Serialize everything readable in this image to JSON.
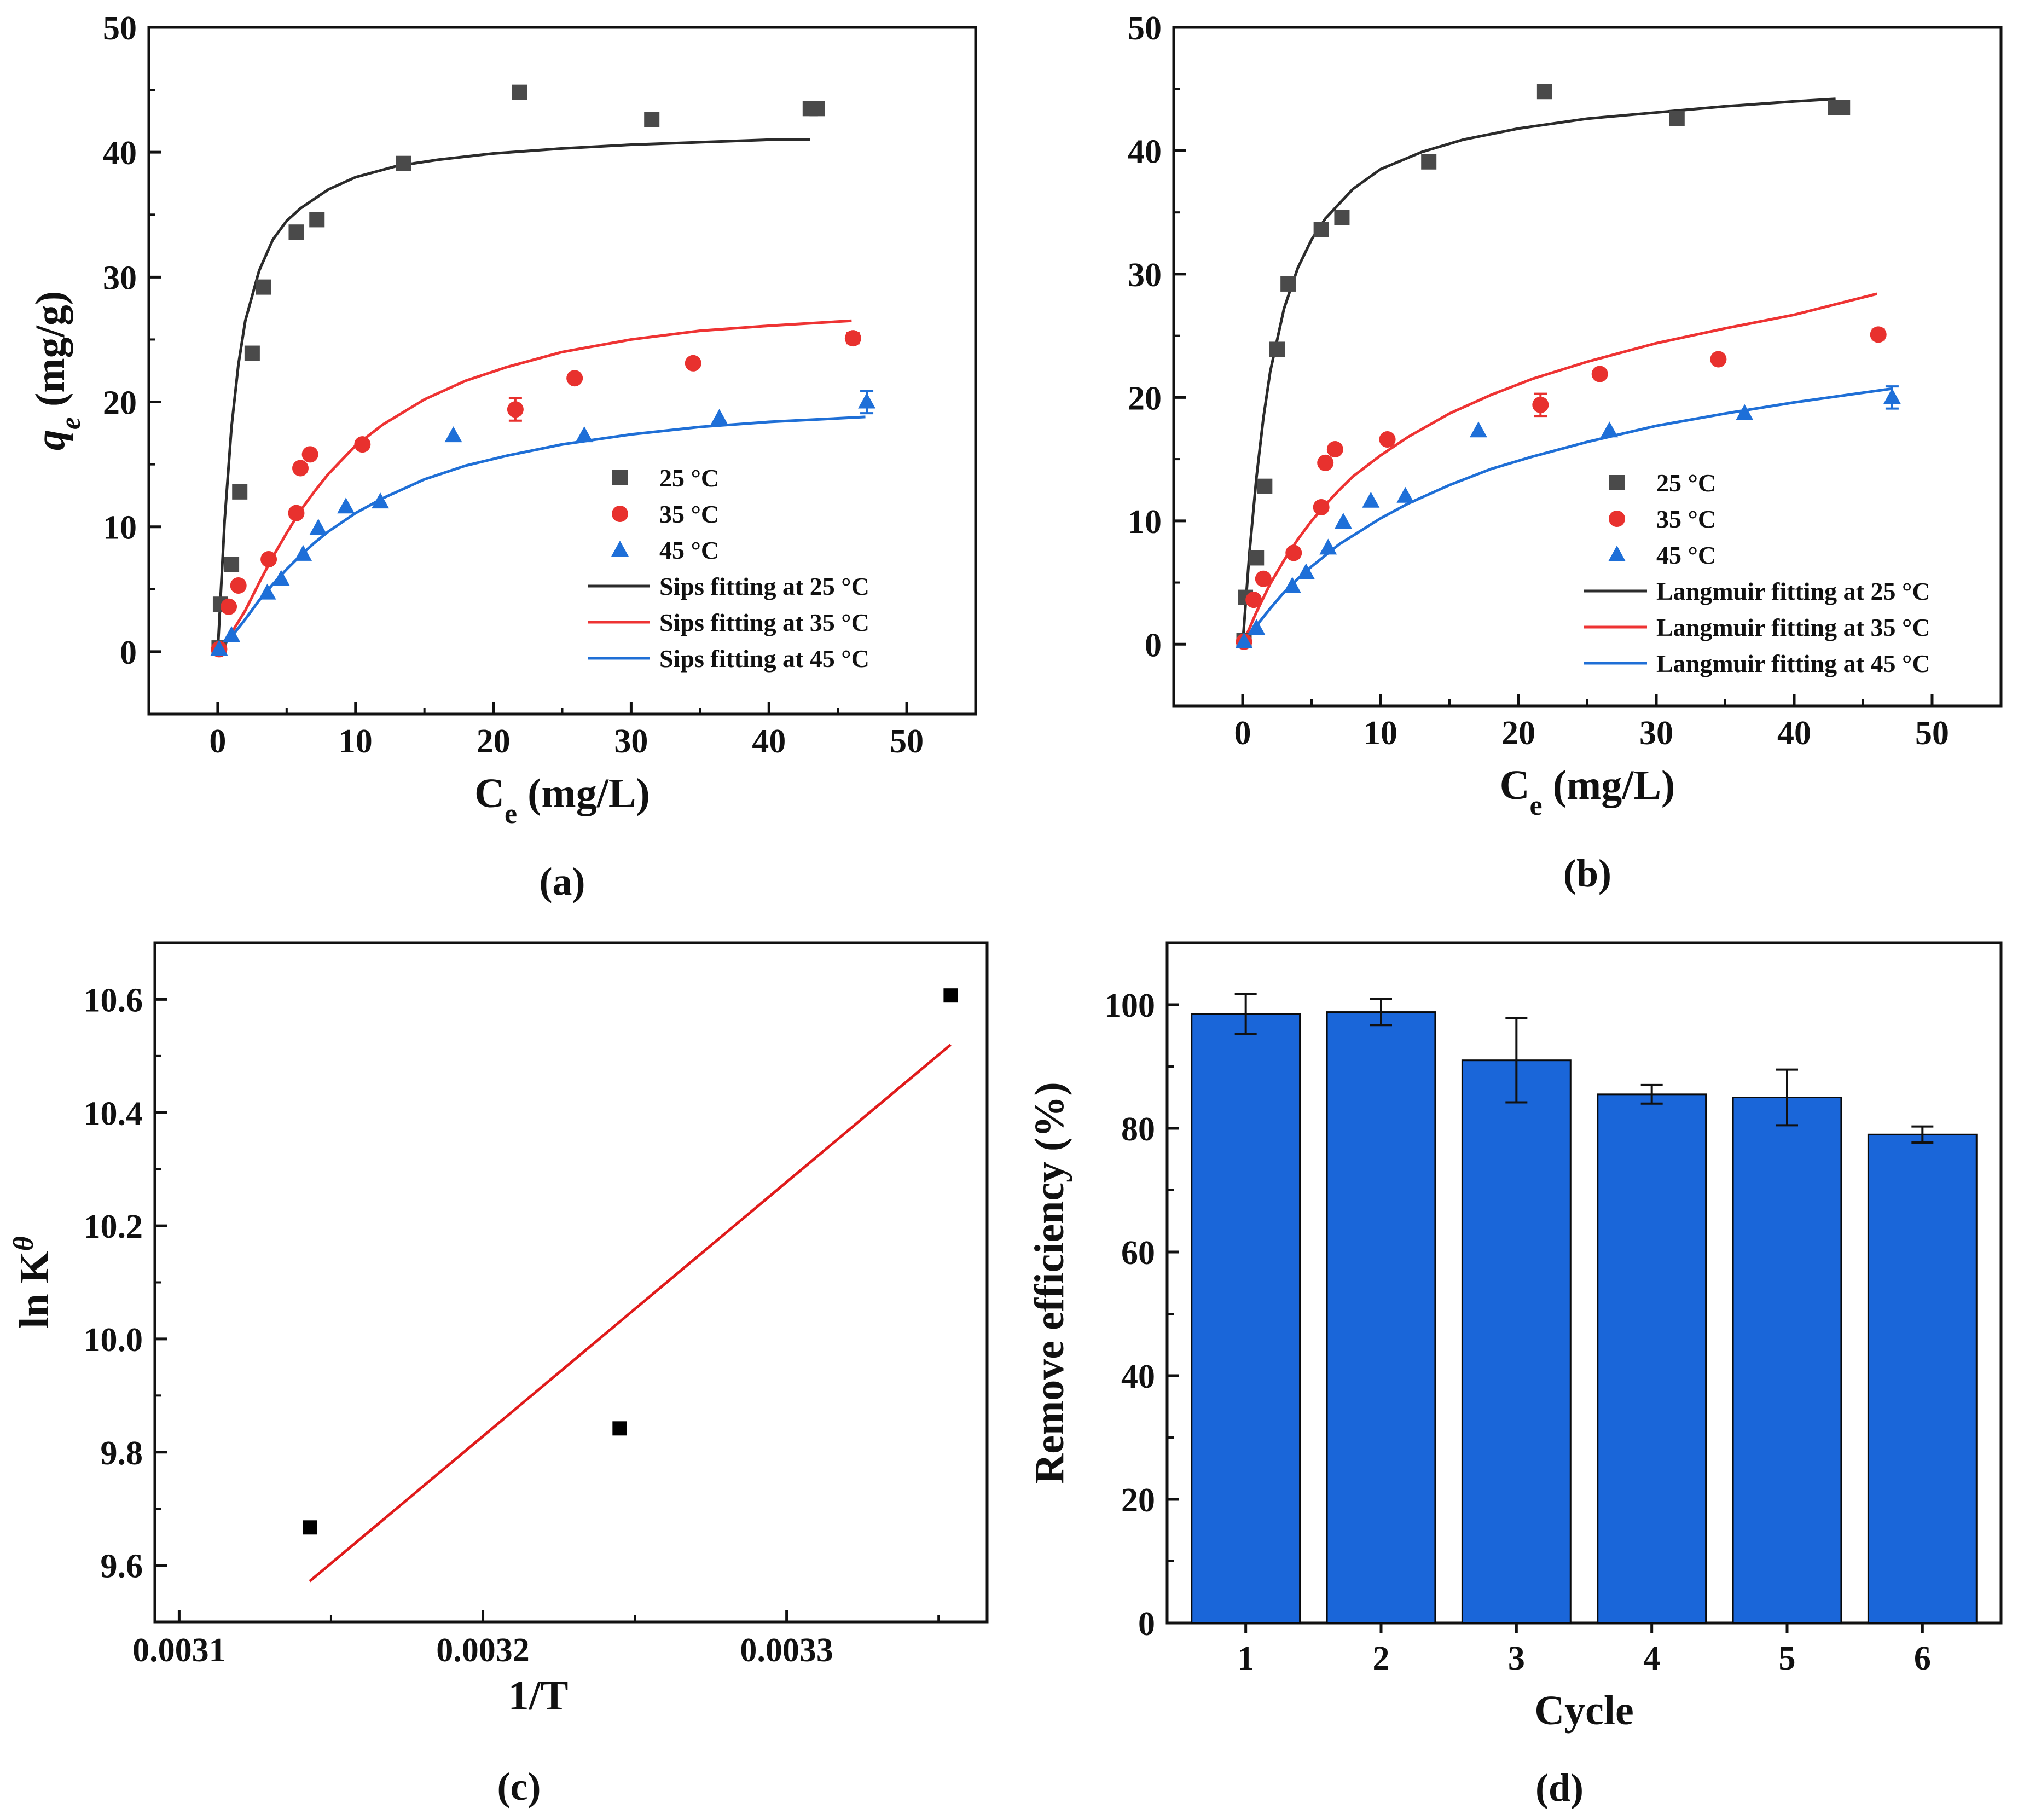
{
  "colors": {
    "c25": "#4a4a4a",
    "c35": "#e8312e",
    "c45": "#1e6fd8",
    "fit25": "#2b2b2b",
    "fit35": "#ee3333",
    "fit45": "#1f6fd6",
    "bar_fill": "#1a66d9",
    "axis": "#111111"
  },
  "chart_data": [
    {
      "type": "scatter",
      "panel_label": "(a)",
      "xlabel": "C",
      "xlabel_sub": "e",
      "xlabel_unit": " (mg/L)",
      "ylabel": "q",
      "ylabel_sub": "e",
      "ylabel_unit": " (mg/g)",
      "xlim": [
        -5,
        55
      ],
      "ylim": [
        -5,
        50
      ],
      "xticks": [
        0,
        10,
        20,
        30,
        40,
        50
      ],
      "yticks": [
        0,
        10,
        20,
        30,
        40,
        50
      ],
      "legend_position": "bottom-right",
      "series": [
        {
          "name": "25 °C",
          "marker": "square",
          "color_key": "c25",
          "x": [
            0.1,
            0.2,
            1.0,
            1.6,
            2.5,
            3.3,
            5.7,
            7.2,
            13.5,
            21.9,
            31.5,
            43.0,
            43.5
          ],
          "y": [
            0.3,
            3.8,
            7.0,
            12.8,
            23.9,
            29.2,
            33.6,
            34.6,
            39.1,
            44.8,
            42.6,
            43.5,
            43.5
          ]
        },
        {
          "name": "35 °C",
          "marker": "circle",
          "color_key": "c35",
          "x": [
            0.1,
            0.8,
            1.5,
            3.7,
            5.7,
            6.0,
            6.7,
            10.5,
            21.6,
            25.9,
            34.5,
            46.1
          ],
          "y": [
            0.2,
            3.6,
            5.3,
            7.4,
            11.1,
            14.7,
            15.8,
            16.6,
            19.4,
            21.9,
            23.1,
            25.1
          ],
          "err": [
            0,
            0,
            0,
            0,
            0,
            0,
            0,
            0,
            0.9,
            0,
            0,
            0.4
          ]
        },
        {
          "name": "45 °C",
          "marker": "triangle",
          "color_key": "c45",
          "x": [
            0.1,
            1.0,
            3.6,
            4.6,
            6.2,
            7.3,
            9.3,
            11.8,
            17.1,
            26.6,
            36.4,
            47.1
          ],
          "y": [
            0.2,
            1.3,
            4.7,
            5.8,
            7.8,
            9.9,
            11.6,
            12.0,
            17.3,
            17.3,
            18.7,
            20.0
          ],
          "err": [
            0,
            0,
            0,
            0,
            0,
            0,
            0,
            0,
            0,
            0,
            0,
            0.9
          ]
        },
        {
          "name": "Sips fitting at 25 °C",
          "style": "line",
          "color_key": "fit25",
          "x": [
            0.0,
            0.5,
            1,
            1.5,
            2,
            3,
            4,
            5,
            6,
            8,
            10,
            13,
            16,
            20,
            25,
            30,
            35,
            40,
            43
          ],
          "y": [
            0.0,
            10.5,
            18.0,
            23.0,
            26.5,
            30.5,
            33.0,
            34.5,
            35.5,
            37.0,
            38.0,
            38.9,
            39.4,
            39.9,
            40.3,
            40.6,
            40.8,
            41.0,
            41.0
          ]
        },
        {
          "name": "Sips fitting at 35 °C",
          "style": "line",
          "color_key": "fit35",
          "x": [
            0.0,
            1,
            2,
            3,
            4,
            5,
            6,
            7,
            8,
            10,
            12,
            15,
            18,
            21,
            25,
            30,
            35,
            40,
            46
          ],
          "y": [
            0.0,
            1.5,
            3.3,
            5.5,
            7.6,
            9.5,
            11.3,
            12.8,
            14.2,
            16.5,
            18.2,
            20.2,
            21.7,
            22.8,
            24.0,
            25.0,
            25.7,
            26.1,
            26.5
          ]
        },
        {
          "name": "Sips fitting at 45 °C",
          "style": "line",
          "color_key": "fit45",
          "x": [
            0.0,
            1,
            2,
            3,
            4,
            5,
            6,
            7,
            8,
            10,
            12,
            15,
            18,
            21,
            25,
            30,
            35,
            40,
            47
          ],
          "y": [
            0.0,
            1.2,
            2.6,
            4.1,
            5.4,
            6.6,
            7.7,
            8.7,
            9.6,
            11.1,
            12.3,
            13.8,
            14.9,
            15.7,
            16.6,
            17.4,
            18.0,
            18.4,
            18.8
          ]
        }
      ]
    },
    {
      "type": "scatter",
      "panel_label": "(b)",
      "xlabel": "C",
      "xlabel_sub": "e",
      "xlabel_unit": " (mg/L)",
      "xlim": [
        -5,
        55
      ],
      "ylim": [
        -5,
        50
      ],
      "xticks": [
        0,
        10,
        20,
        30,
        40,
        50
      ],
      "yticks": [
        0,
        10,
        20,
        30,
        40,
        50
      ],
      "legend_position": "bottom-right",
      "series": [
        {
          "name": "25 °C",
          "marker": "square",
          "color_key": "c25",
          "x": [
            0.1,
            0.2,
            1.0,
            1.6,
            2.5,
            3.3,
            5.7,
            7.2,
            13.5,
            21.9,
            31.5,
            43.0,
            43.5
          ],
          "y": [
            0.3,
            3.8,
            7.0,
            12.8,
            23.9,
            29.2,
            33.6,
            34.6,
            39.1,
            44.8,
            42.6,
            43.5,
            43.5
          ]
        },
        {
          "name": "35 °C",
          "marker": "circle",
          "color_key": "c35",
          "x": [
            0.1,
            0.8,
            1.5,
            3.7,
            5.7,
            6.0,
            6.7,
            10.5,
            21.6,
            25.9,
            34.5,
            46.1
          ],
          "y": [
            0.2,
            3.6,
            5.3,
            7.4,
            11.1,
            14.7,
            15.8,
            16.6,
            19.4,
            21.9,
            23.1,
            25.1
          ],
          "err": [
            0,
            0,
            0,
            0,
            0,
            0,
            0,
            0,
            0.9,
            0,
            0,
            0.4
          ]
        },
        {
          "name": "45 °C",
          "marker": "triangle",
          "color_key": "c45",
          "x": [
            0.1,
            1.0,
            3.6,
            4.6,
            6.2,
            7.3,
            9.3,
            11.8,
            17.1,
            26.6,
            36.4,
            47.1
          ],
          "y": [
            0.2,
            1.3,
            4.7,
            5.8,
            7.8,
            9.9,
            11.6,
            12.0,
            17.3,
            17.3,
            18.7,
            20.0
          ],
          "err": [
            0,
            0,
            0,
            0,
            0,
            0,
            0,
            0,
            0,
            0,
            0,
            0.9
          ]
        },
        {
          "name": "Langmuir fitting at 25 °C",
          "style": "line",
          "color_key": "fit25",
          "x": [
            0.0,
            0.5,
            1,
            1.5,
            2,
            3,
            4,
            5,
            6,
            8,
            10,
            13,
            16,
            20,
            25,
            30,
            35,
            40,
            43
          ],
          "y": [
            0.0,
            7.5,
            13.5,
            18.3,
            22.1,
            27.2,
            30.5,
            32.8,
            34.5,
            36.9,
            38.5,
            39.9,
            40.9,
            41.8,
            42.6,
            43.1,
            43.6,
            44.0,
            44.2
          ]
        },
        {
          "name": "Langmuir fitting at 35 °C",
          "style": "line",
          "color_key": "fit35",
          "x": [
            0.0,
            1,
            2,
            3,
            4,
            5,
            6,
            7,
            8,
            10,
            12,
            15,
            18,
            21,
            25,
            30,
            35,
            40,
            46
          ],
          "y": [
            0.0,
            2.6,
            4.9,
            6.8,
            8.5,
            10.0,
            11.3,
            12.5,
            13.6,
            15.3,
            16.8,
            18.7,
            20.2,
            21.5,
            22.9,
            24.4,
            25.6,
            26.7,
            28.4
          ]
        },
        {
          "name": "Langmuir fitting at 45 °C",
          "style": "line",
          "color_key": "fit45",
          "x": [
            0.0,
            1,
            2,
            3,
            4,
            5,
            6,
            7,
            8,
            10,
            12,
            15,
            18,
            21,
            25,
            30,
            35,
            40,
            47
          ],
          "y": [
            0.0,
            1.5,
            2.9,
            4.2,
            5.3,
            6.3,
            7.2,
            8.1,
            8.8,
            10.2,
            11.4,
            12.9,
            14.2,
            15.2,
            16.4,
            17.7,
            18.7,
            19.6,
            20.7
          ]
        }
      ]
    },
    {
      "type": "scatter",
      "panel_label": "(c)",
      "xlabel": "1/T",
      "ylabel": "ln K",
      "ylabel_sup": "θ",
      "xlim": [
        0.003092,
        0.003366
      ],
      "ylim": [
        9.5,
        10.7
      ],
      "xticks": [
        0.0031,
        0.0032,
        0.0033
      ],
      "xtick_labels": [
        "0.0031",
        "0.0032",
        "0.0033"
      ],
      "yticks": [
        9.6,
        9.8,
        10.0,
        10.2,
        10.4,
        10.6
      ],
      "ytick_labels": [
        "9.6",
        "9.8",
        "10.0",
        "10.2",
        "10.4",
        "10.6"
      ],
      "series": [
        {
          "name": "",
          "marker": "square",
          "color": "#000000",
          "x": [
            0.003143,
            0.003245,
            0.003354
          ],
          "y": [
            9.667,
            9.842,
            10.607
          ]
        },
        {
          "name": "",
          "style": "line",
          "color": "#e01b1b",
          "x": [
            0.003143,
            0.003354
          ],
          "y": [
            9.572,
            10.52
          ]
        }
      ]
    },
    {
      "type": "bar",
      "panel_label": "(d)",
      "xlabel": "Cycle",
      "ylabel": "Remove efficiency (%)",
      "categories": [
        "1",
        "2",
        "3",
        "4",
        "5",
        "6"
      ],
      "values": [
        98.5,
        98.8,
        91.0,
        85.5,
        85.0,
        79.0
      ],
      "errors": [
        3.2,
        2.1,
        6.8,
        1.5,
        4.5,
        1.3
      ],
      "ylim": [
        0,
        110
      ],
      "yticks": [
        0,
        20,
        40,
        60,
        80,
        100
      ]
    }
  ]
}
